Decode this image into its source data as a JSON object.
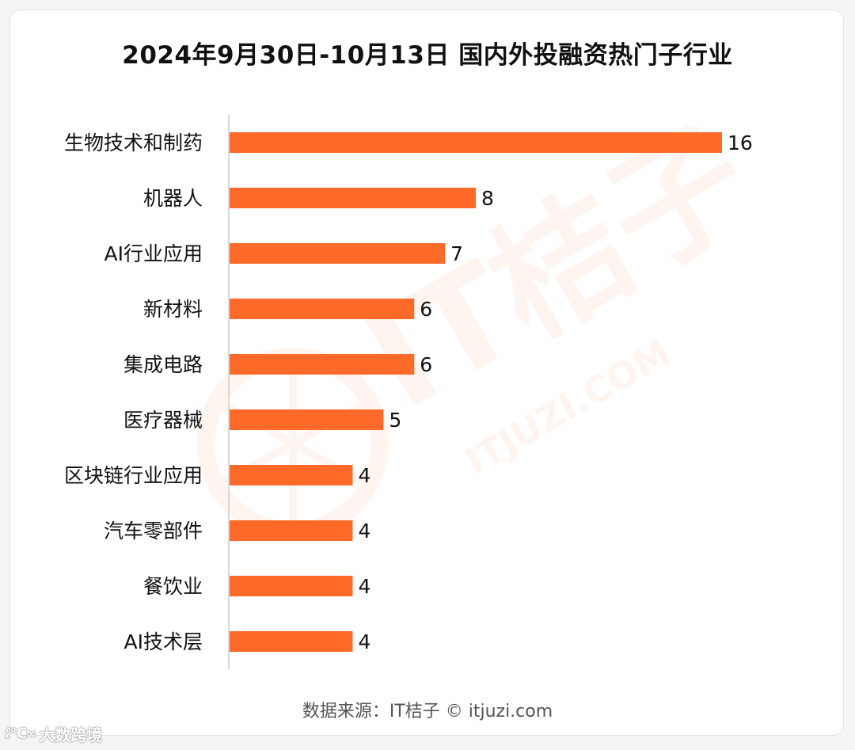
{
  "title": "2024年9月30日-10月13日 国内外投融资热门子行业",
  "source": "数据来源：IT桔子 © itjuzi.com",
  "watermark": {
    "brand": "IT桔子",
    "domain": "ITJUZI.COM"
  },
  "corner_logo": {
    "mark": "ℓ℃∞",
    "text": "大数跨境"
  },
  "colors": {
    "bar": "#ff6a28",
    "axis": "#cccccc",
    "label": "#111111"
  },
  "chart_data": {
    "type": "bar",
    "orientation": "horizontal",
    "categories": [
      "生物技术和制药",
      "机器人",
      "AI行业应用",
      "新材料",
      "集成电路",
      "医疗器械",
      "区块链行业应用",
      "汽车零部件",
      "餐饮业",
      "AI技术层"
    ],
    "values": [
      16,
      8,
      7,
      6,
      6,
      5,
      4,
      4,
      4,
      4
    ],
    "title": "2024年9月30日-10月13日 国内外投融资热门子行业",
    "xlabel": "",
    "ylabel": "",
    "xlim": [
      0,
      16
    ],
    "grid": false,
    "data_labels": true
  }
}
